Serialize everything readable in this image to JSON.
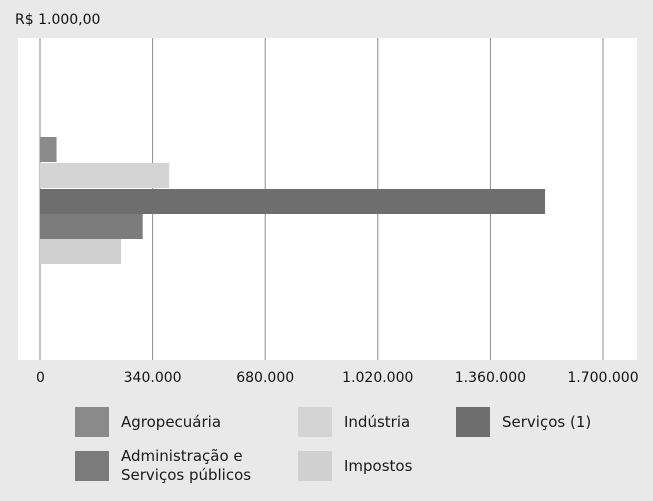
{
  "chart_data": {
    "type": "bar",
    "orientation": "horizontal",
    "unit_label": "R$ 1.000,00",
    "xlim": [
      0,
      1700000
    ],
    "x_ticks": [
      {
        "value": 0,
        "label": "0"
      },
      {
        "value": 340000,
        "label": "340.000"
      },
      {
        "value": 680000,
        "label": "680.000"
      },
      {
        "value": 1020000,
        "label": "1.020.000"
      },
      {
        "value": 1360000,
        "label": "1.360.000"
      },
      {
        "value": 1700000,
        "label": "1.700.000"
      }
    ],
    "grid": "vertical",
    "legend_placement": "bottom",
    "series": [
      {
        "name": "Agropecuária",
        "value": 50000,
        "color": "#8a8a8a"
      },
      {
        "name": "Indústria",
        "value": 390000,
        "color": "#d4d4d4"
      },
      {
        "name": "Serviços (1)",
        "value": 1525000,
        "color": "#6e6e6e"
      },
      {
        "name": "Administração e\nServiços públicos",
        "value": 310000,
        "color": "#7c7c7c"
      },
      {
        "name": "Impostos",
        "value": 245000,
        "color": "#d0d0d0"
      }
    ]
  },
  "legend": {
    "items": [
      {
        "label": "Agropecuária"
      },
      {
        "label": "Indústria"
      },
      {
        "label": "Serviços (1)"
      },
      {
        "label": "Administração e\nServiços públicos"
      },
      {
        "label": "Impostos"
      }
    ]
  },
  "colors": {
    "background": "#e9e9e9",
    "plot_background": "#ffffff",
    "gridline": "#8c8c8c"
  }
}
